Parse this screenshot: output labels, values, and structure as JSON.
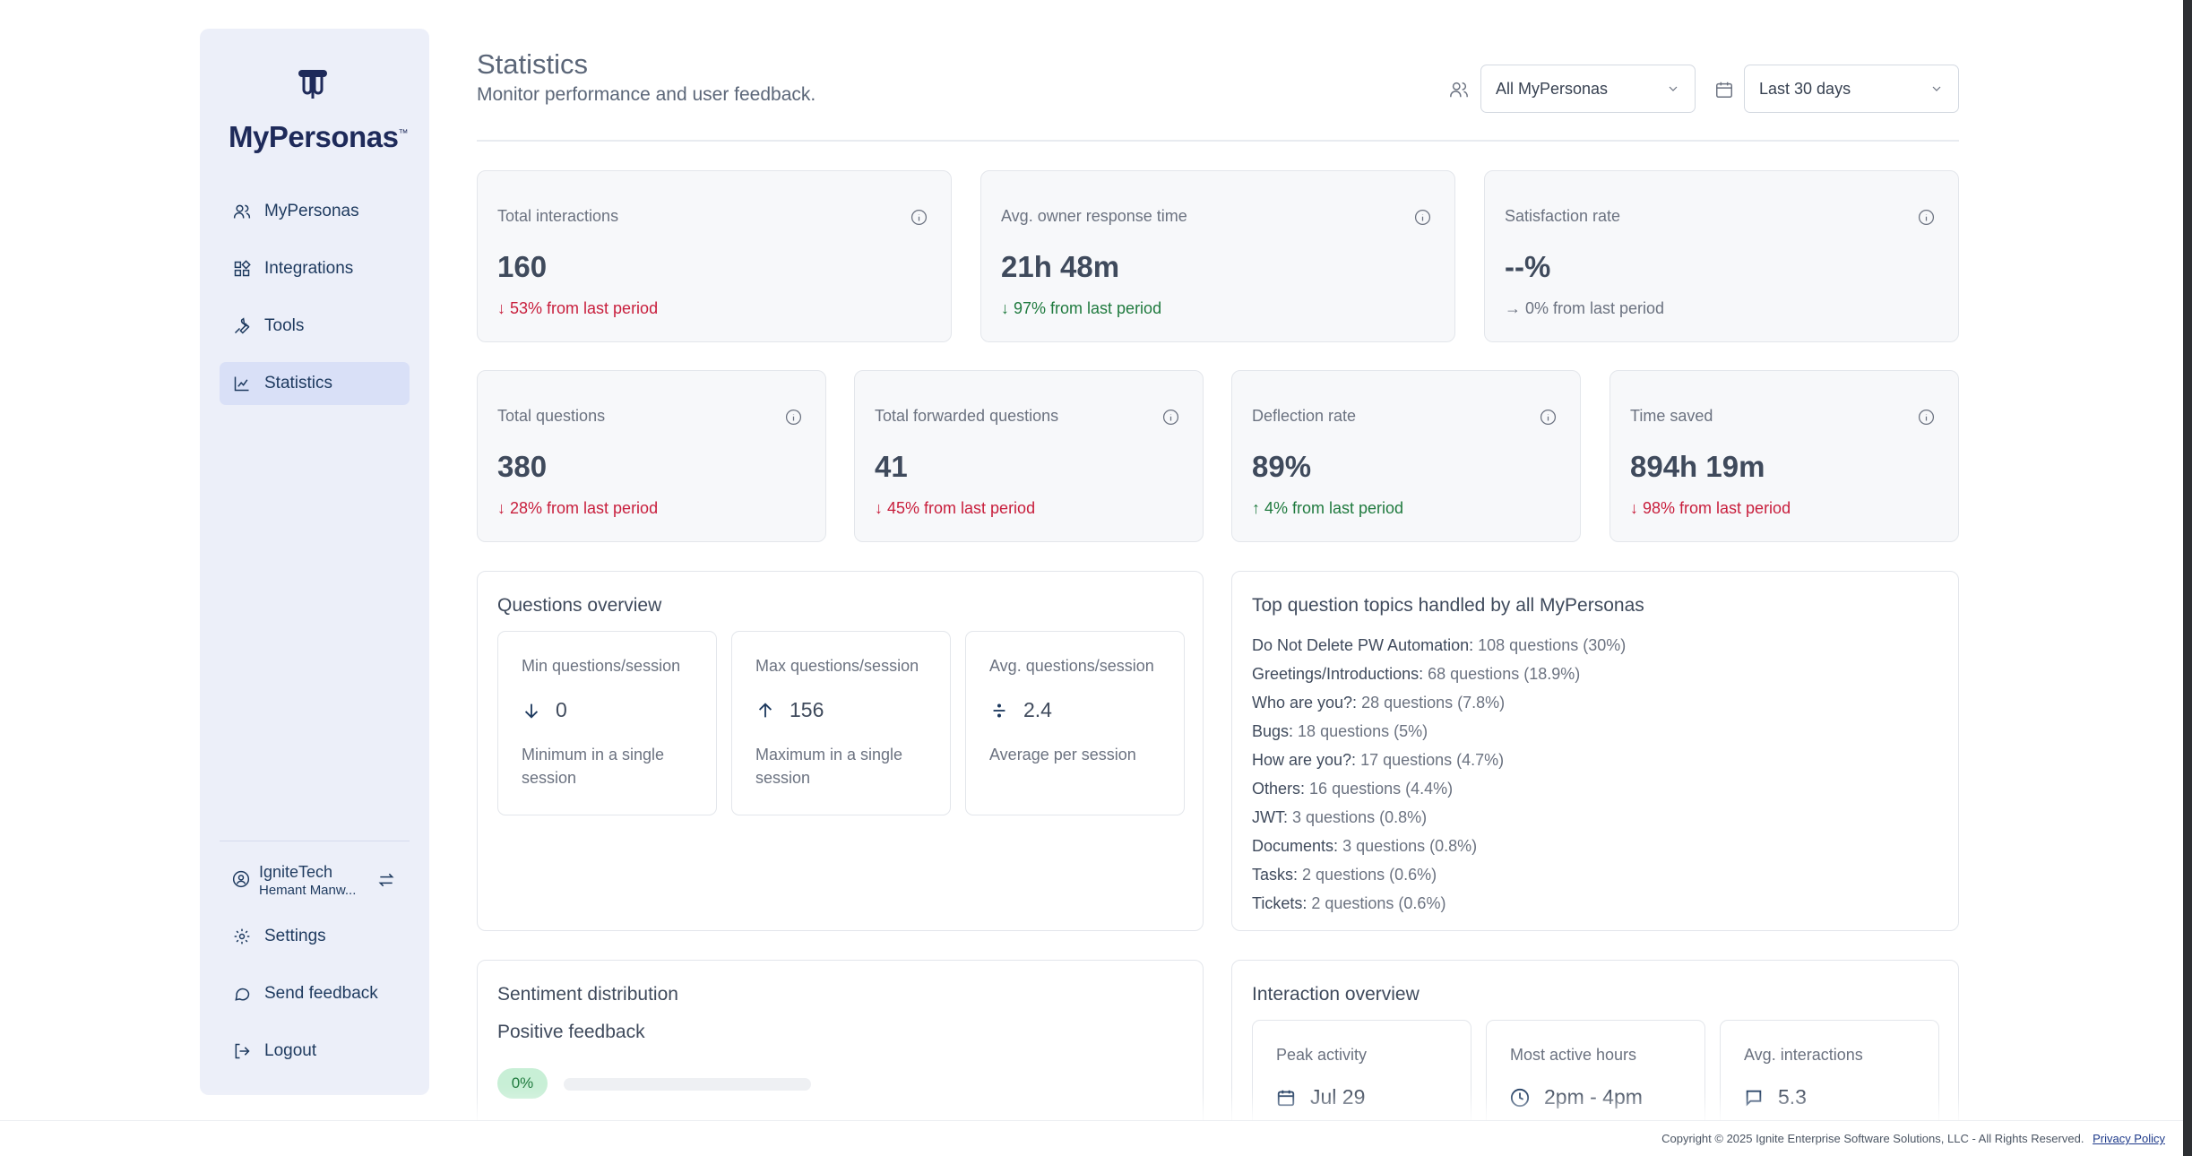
{
  "app": {
    "logo_text": "MyPersonas",
    "logo_tm": "™"
  },
  "sidebar": {
    "items": [
      {
        "label": "MyPersonas",
        "icon": "users-icon"
      },
      {
        "label": "Integrations",
        "icon": "integrations-icon"
      },
      {
        "label": "Tools",
        "icon": "wrench-icon"
      },
      {
        "label": "Statistics",
        "icon": "chart-icon",
        "active": true
      }
    ],
    "user": {
      "name": "IgniteTech",
      "sub": "Hemant Manw..."
    },
    "bottom": [
      {
        "label": "Settings",
        "icon": "gear-icon"
      },
      {
        "label": "Send feedback",
        "icon": "message-icon"
      },
      {
        "label": "Logout",
        "icon": "logout-icon"
      }
    ]
  },
  "header": {
    "title": "Statistics",
    "subtitle": "Monitor performance and user feedback.",
    "persona_filter": "All MyPersonas",
    "date_filter": "Last 30 days"
  },
  "metrics_row1": [
    {
      "label": "Total interactions",
      "value": "160",
      "change": "↓ 53% from last period",
      "trend": "neg"
    },
    {
      "label": "Avg. owner response time",
      "value": "21h 48m",
      "change": "↓ 97% from last period",
      "trend": "pos"
    },
    {
      "label": "Satisfaction rate",
      "value": "--%",
      "change": "→ 0% from last period",
      "trend": "neu"
    }
  ],
  "metrics_row2": [
    {
      "label": "Total questions",
      "value": "380",
      "change": "↓ 28% from last period",
      "trend": "neg"
    },
    {
      "label": "Total forwarded questions",
      "value": "41",
      "change": "↓ 45% from last period",
      "trend": "neg"
    },
    {
      "label": "Deflection rate",
      "value": "89%",
      "change": "↑ 4% from last period",
      "trend": "pos"
    },
    {
      "label": "Time saved",
      "value": "894h 19m",
      "change": "↓ 98% from last period",
      "trend": "neg"
    }
  ],
  "questions_overview": {
    "title": "Questions overview",
    "cards": [
      {
        "label": "Min questions/session",
        "value": "0",
        "icon": "arrow-down-icon",
        "desc": "Minimum in a single session"
      },
      {
        "label": "Max questions/session",
        "value": "156",
        "icon": "arrow-up-icon",
        "desc": "Maximum in a single session"
      },
      {
        "label": "Avg. questions/session",
        "value": "2.4",
        "icon": "divide-icon",
        "desc": "Average per session"
      }
    ]
  },
  "top_topics": {
    "title": "Top question topics handled by all MyPersonas",
    "items": [
      {
        "name": "Do Not Delete PW Automation:",
        "count": "108 questions (30%)"
      },
      {
        "name": "Greetings/Introductions:",
        "count": "68 questions (18.9%)"
      },
      {
        "name": "Who are you?:",
        "count": "28 questions (7.8%)"
      },
      {
        "name": "Bugs:",
        "count": "18 questions (5%)"
      },
      {
        "name": "How are you?:",
        "count": "17 questions (4.7%)"
      },
      {
        "name": "Others:",
        "count": "16 questions (4.4%)"
      },
      {
        "name": "JWT:",
        "count": "3 questions (0.8%)"
      },
      {
        "name": "Documents:",
        "count": "3 questions (0.8%)"
      },
      {
        "name": "Tasks:",
        "count": "2 questions (0.6%)"
      },
      {
        "name": "Tickets:",
        "count": "2 questions (0.6%)"
      }
    ]
  },
  "sentiment": {
    "title": "Sentiment distribution",
    "positive_label": "Positive feedback",
    "positive_value": "0%",
    "positive_fraction": 0
  },
  "interaction_overview": {
    "title": "Interaction overview",
    "cards": [
      {
        "label": "Peak activity",
        "value": "Jul 29",
        "icon": "calendar-icon"
      },
      {
        "label": "Most active hours",
        "value": "2pm - 4pm",
        "icon": "clock-icon"
      },
      {
        "label": "Avg. interactions",
        "value": "5.3",
        "icon": "message-icon"
      }
    ]
  },
  "footer": {
    "copyright": "Copyright © 2025 Ignite Enterprise Software Solutions, LLC - All Rights Reserved.",
    "privacy": "Privacy Policy"
  }
}
